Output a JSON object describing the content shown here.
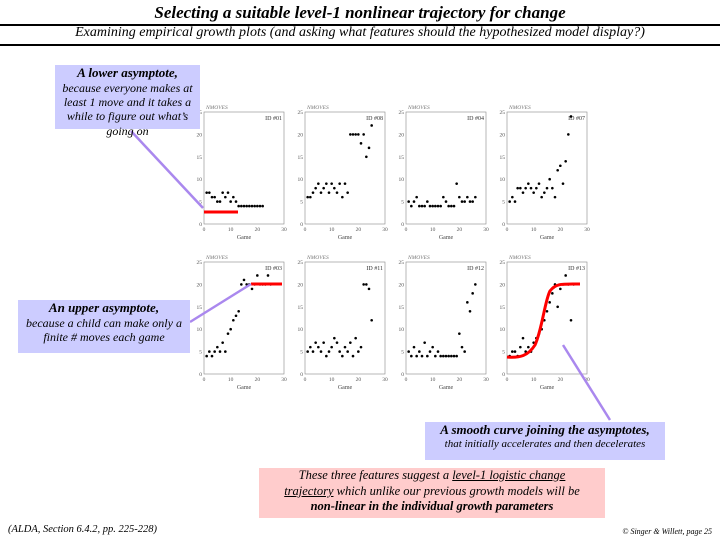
{
  "header": {
    "title": "Selecting a suitable level-1 nonlinear trajectory for change",
    "subtitle": "Examining empirical growth plots (and asking what features should the hypothesized model display?)"
  },
  "callouts": {
    "lower": {
      "title": "A lower asymptote,",
      "body": "because everyone makes at least 1 move and it takes a while to figure out what’s going on"
    },
    "upper": {
      "title": "An upper asymptote,",
      "body": "because a child can make only a finite # moves each game"
    },
    "smooth": {
      "title": "A smooth curve joining the asymptotes,",
      "body": "that initially accelerates and then decelerates"
    }
  },
  "note": {
    "line1": "These three features suggest a ",
    "link1": "level-1 logistic change",
    "link2": "trajectory",
    "line2": " which unlike our previous growth models will be",
    "bold": "non-linear in the individual growth parameters"
  },
  "footer": {
    "left": "(ALDA, Section 6.4.2, pp. 225-228)",
    "right": "© Singer & Willett, page 25"
  },
  "colors": {
    "callout": "#ccccff",
    "note": "#ffcccc",
    "highlight": "#ff0000",
    "arrow": "#aa88ee"
  },
  "chart_data": {
    "type": "scatter",
    "xlabel": "Game",
    "ylabel": "NMOVES",
    "xlim": [
      0,
      30
    ],
    "ylim": [
      0,
      25
    ],
    "xticks": [
      "0",
      "10",
      "20",
      "30"
    ],
    "yticks": [
      "0",
      "5",
      "10",
      "15",
      "20",
      "25"
    ],
    "panels": [
      {
        "id": "ID #01",
        "x": [
          1,
          2,
          3,
          4,
          5,
          6,
          7,
          8,
          9,
          10,
          11,
          12,
          13,
          14,
          15,
          16,
          17,
          18,
          19,
          20,
          21,
          22
        ],
        "y": [
          7,
          7,
          6,
          6,
          5,
          5,
          7,
          6,
          7,
          5,
          6,
          5,
          4,
          4,
          4,
          4,
          4,
          4,
          4,
          4,
          4,
          4
        ]
      },
      {
        "id": "ID #08",
        "x": [
          1,
          2,
          3,
          4,
          5,
          6,
          7,
          8,
          9,
          10,
          11,
          12,
          13,
          14,
          15,
          16,
          17,
          18,
          19,
          20,
          21,
          22,
          23,
          24,
          25
        ],
        "y": [
          6,
          6,
          7,
          8,
          9,
          7,
          8,
          9,
          7,
          9,
          8,
          7,
          9,
          6,
          9,
          7,
          20,
          20,
          20,
          20,
          18,
          20,
          15,
          17,
          22
        ]
      },
      {
        "id": "ID #04",
        "x": [
          1,
          2,
          3,
          4,
          5,
          6,
          7,
          8,
          9,
          10,
          11,
          12,
          13,
          14,
          15,
          16,
          17,
          18,
          19,
          20,
          21,
          22,
          23,
          24,
          25,
          26
        ],
        "y": [
          5,
          4,
          5,
          6,
          4,
          4,
          4,
          5,
          4,
          4,
          4,
          4,
          4,
          6,
          5,
          4,
          4,
          4,
          9,
          6,
          5,
          5,
          6,
          5,
          5,
          6
        ]
      },
      {
        "id": "ID #07",
        "x": [
          1,
          2,
          3,
          4,
          5,
          6,
          7,
          8,
          9,
          10,
          11,
          12,
          13,
          14,
          15,
          16,
          17,
          18,
          19,
          20,
          21,
          22,
          23,
          24
        ],
        "y": [
          5,
          6,
          5,
          8,
          8,
          7,
          8,
          9,
          8,
          7,
          8,
          9,
          6,
          7,
          8,
          10,
          8,
          6,
          12,
          13,
          9,
          14,
          20,
          24
        ]
      },
      {
        "id": "ID #03",
        "x": [
          1,
          2,
          3,
          4,
          5,
          6,
          7,
          8,
          9,
          10,
          11,
          12,
          13,
          14,
          15,
          16,
          17,
          18,
          19,
          20,
          21,
          22,
          23,
          24,
          25
        ],
        "y": [
          4,
          5,
          4,
          5,
          6,
          5,
          7,
          5,
          9,
          10,
          12,
          13,
          14,
          20,
          21,
          20,
          20,
          19,
          20,
          22,
          20,
          20,
          20,
          22,
          20
        ]
      },
      {
        "id": "ID #11",
        "x": [
          1,
          2,
          3,
          4,
          5,
          6,
          7,
          8,
          9,
          10,
          11,
          12,
          13,
          14,
          15,
          16,
          17,
          18,
          19,
          20,
          21,
          22,
          23,
          24,
          25
        ],
        "y": [
          5,
          6,
          5,
          7,
          6,
          5,
          7,
          4,
          5,
          6,
          8,
          7,
          5,
          4,
          6,
          5,
          7,
          4,
          8,
          5,
          6,
          20,
          20,
          19,
          12
        ]
      },
      {
        "id": "ID #12",
        "x": [
          1,
          2,
          3,
          4,
          5,
          6,
          7,
          8,
          9,
          10,
          11,
          12,
          13,
          14,
          15,
          16,
          17,
          18,
          19,
          20,
          21,
          22,
          23,
          24,
          25,
          26
        ],
        "y": [
          5,
          4,
          6,
          4,
          5,
          4,
          7,
          4,
          5,
          6,
          4,
          5,
          4,
          4,
          4,
          4,
          4,
          4,
          4,
          9,
          6,
          5,
          16,
          14,
          18,
          20
        ]
      },
      {
        "id": "ID #13",
        "x": [
          1,
          2,
          3,
          4,
          5,
          6,
          7,
          8,
          9,
          10,
          11,
          12,
          13,
          14,
          15,
          16,
          17,
          18,
          19,
          20,
          21,
          22,
          23,
          24,
          25
        ],
        "y": [
          4,
          5,
          5,
          4,
          6,
          8,
          5,
          6,
          5,
          7,
          8,
          9,
          10,
          12,
          14,
          16,
          18,
          20,
          15,
          19,
          20,
          22,
          20,
          12,
          20
        ]
      }
    ]
  }
}
